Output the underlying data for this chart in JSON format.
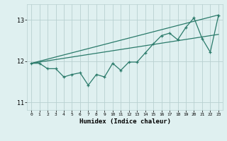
{
  "xlabel": "Humidex (Indice chaleur)",
  "bg_color": "#dff0f0",
  "grid_color": "#b8d0d0",
  "line_color": "#2a7a6a",
  "xlim": [
    -0.5,
    23.5
  ],
  "ylim": [
    10.82,
    13.38
  ],
  "yticks": [
    11,
    12,
    13
  ],
  "xticks": [
    0,
    1,
    2,
    3,
    4,
    5,
    6,
    7,
    8,
    9,
    10,
    11,
    12,
    13,
    14,
    15,
    16,
    17,
    18,
    19,
    20,
    21,
    22,
    23
  ],
  "main_x": [
    0,
    1,
    2,
    3,
    4,
    5,
    6,
    7,
    8,
    9,
    10,
    11,
    12,
    13,
    14,
    15,
    16,
    17,
    18,
    19,
    20,
    21,
    22,
    23
  ],
  "main_y": [
    11.95,
    11.95,
    11.82,
    11.82,
    11.62,
    11.68,
    11.72,
    11.42,
    11.68,
    11.62,
    11.95,
    11.78,
    11.98,
    11.98,
    12.2,
    12.42,
    12.62,
    12.68,
    12.52,
    12.82,
    13.05,
    12.55,
    12.22,
    13.1
  ],
  "line2_x": [
    0,
    23
  ],
  "line2_y": [
    11.95,
    13.12
  ],
  "line3_x": [
    0,
    23
  ],
  "line3_y": [
    11.95,
    12.65
  ]
}
